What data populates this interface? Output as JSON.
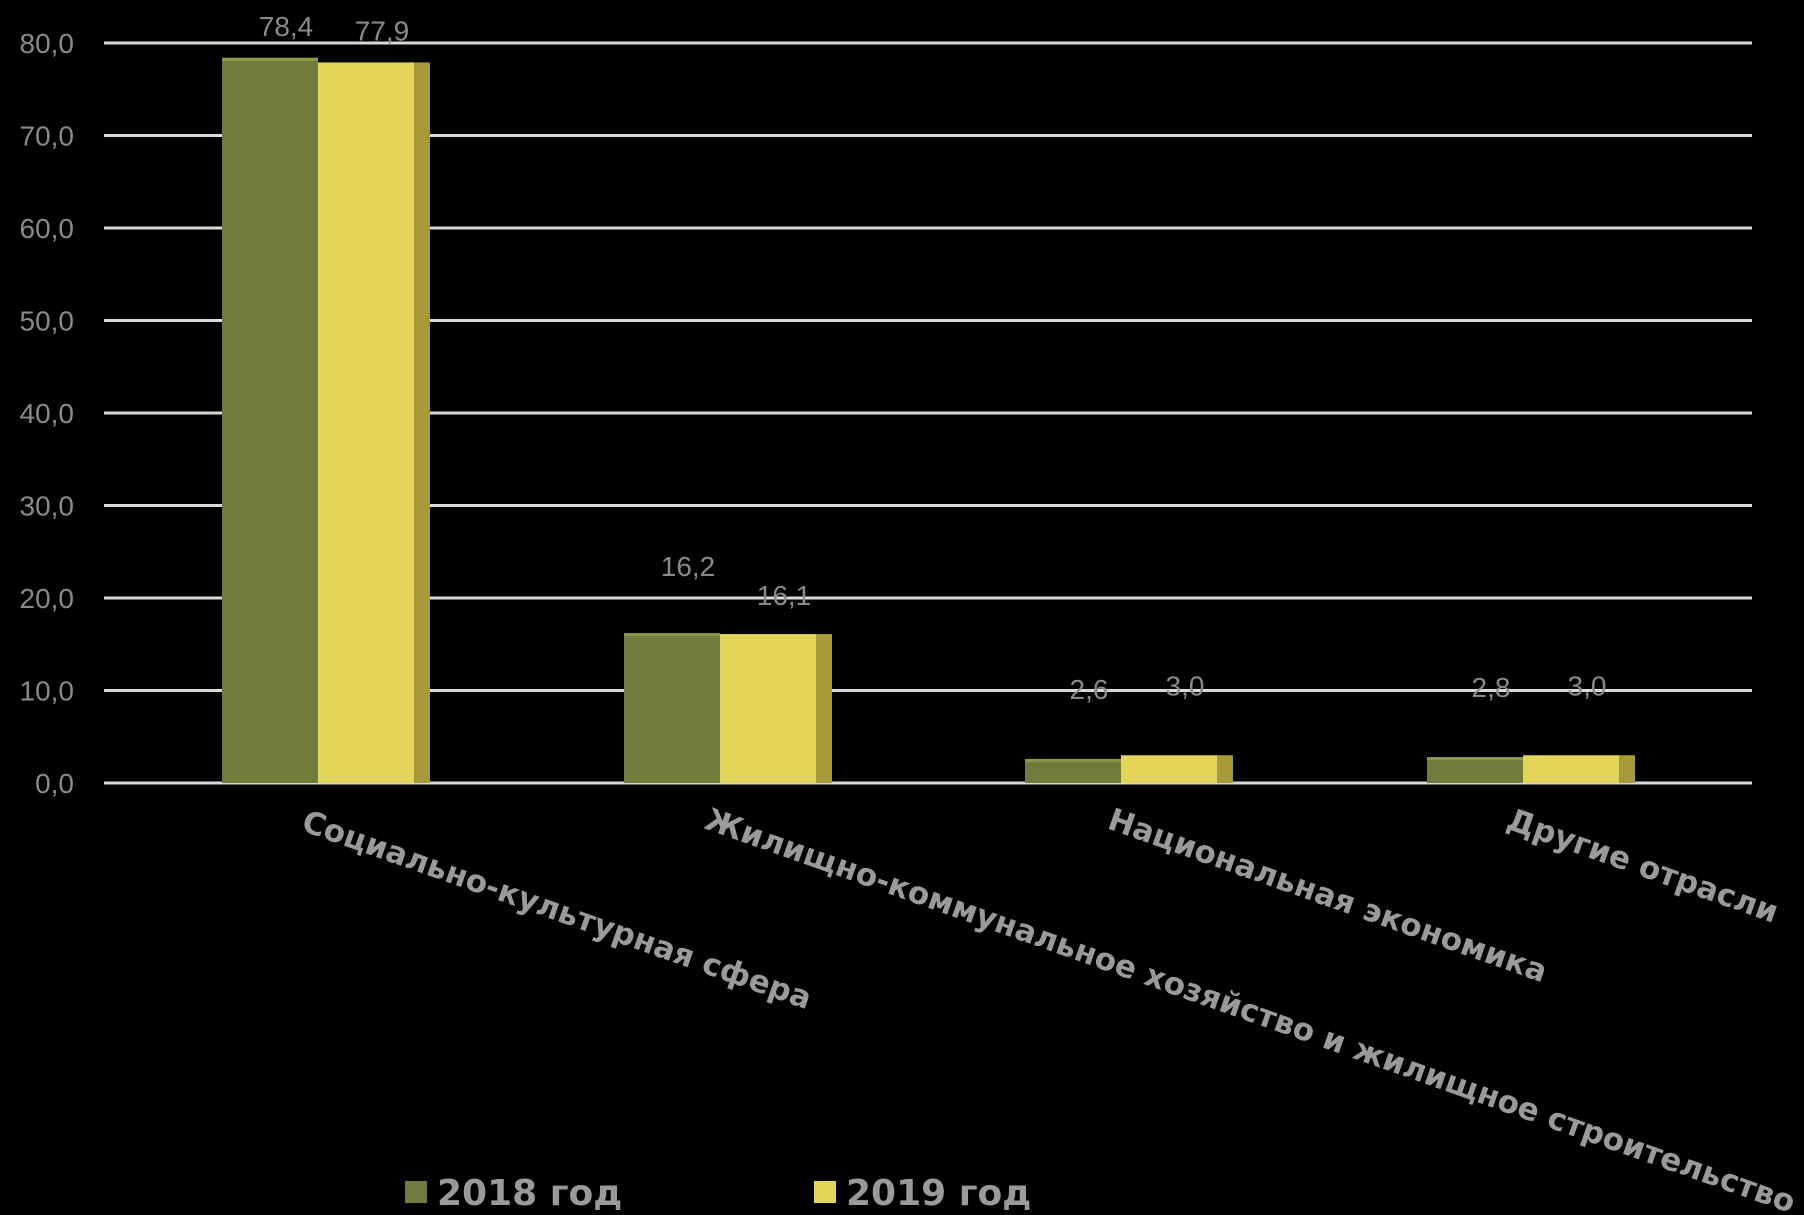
{
  "chart_data": {
    "type": "bar",
    "title": "",
    "xlabel": "",
    "ylabel": "",
    "ylim": [
      0,
      80
    ],
    "yticks": [
      "0,0",
      "10,0",
      "20,0",
      "30,0",
      "40,0",
      "50,0",
      "60,0",
      "70,0",
      "80,0"
    ],
    "grid": true,
    "legend_position": "bottom",
    "categories": [
      "Социально-культурная сфера",
      "Жилищно-коммунальное хозяйство и жилищное строительство",
      "Национальная экономика",
      "Другие отрасли"
    ],
    "series": [
      {
        "name": "2018 год",
        "color": "#6f7c3b",
        "values": [
          78.4,
          16.2,
          2.6,
          2.8
        ],
        "labels": [
          "78,4",
          "16,2",
          "2,6",
          "2,8"
        ]
      },
      {
        "name": "2019 год",
        "color": "#e5d45a",
        "side_color": "#a79a3b",
        "values": [
          77.9,
          16.1,
          3.0,
          3.0
        ],
        "labels": [
          "77,9",
          "16,1",
          "3,0",
          "3,0"
        ]
      }
    ]
  }
}
